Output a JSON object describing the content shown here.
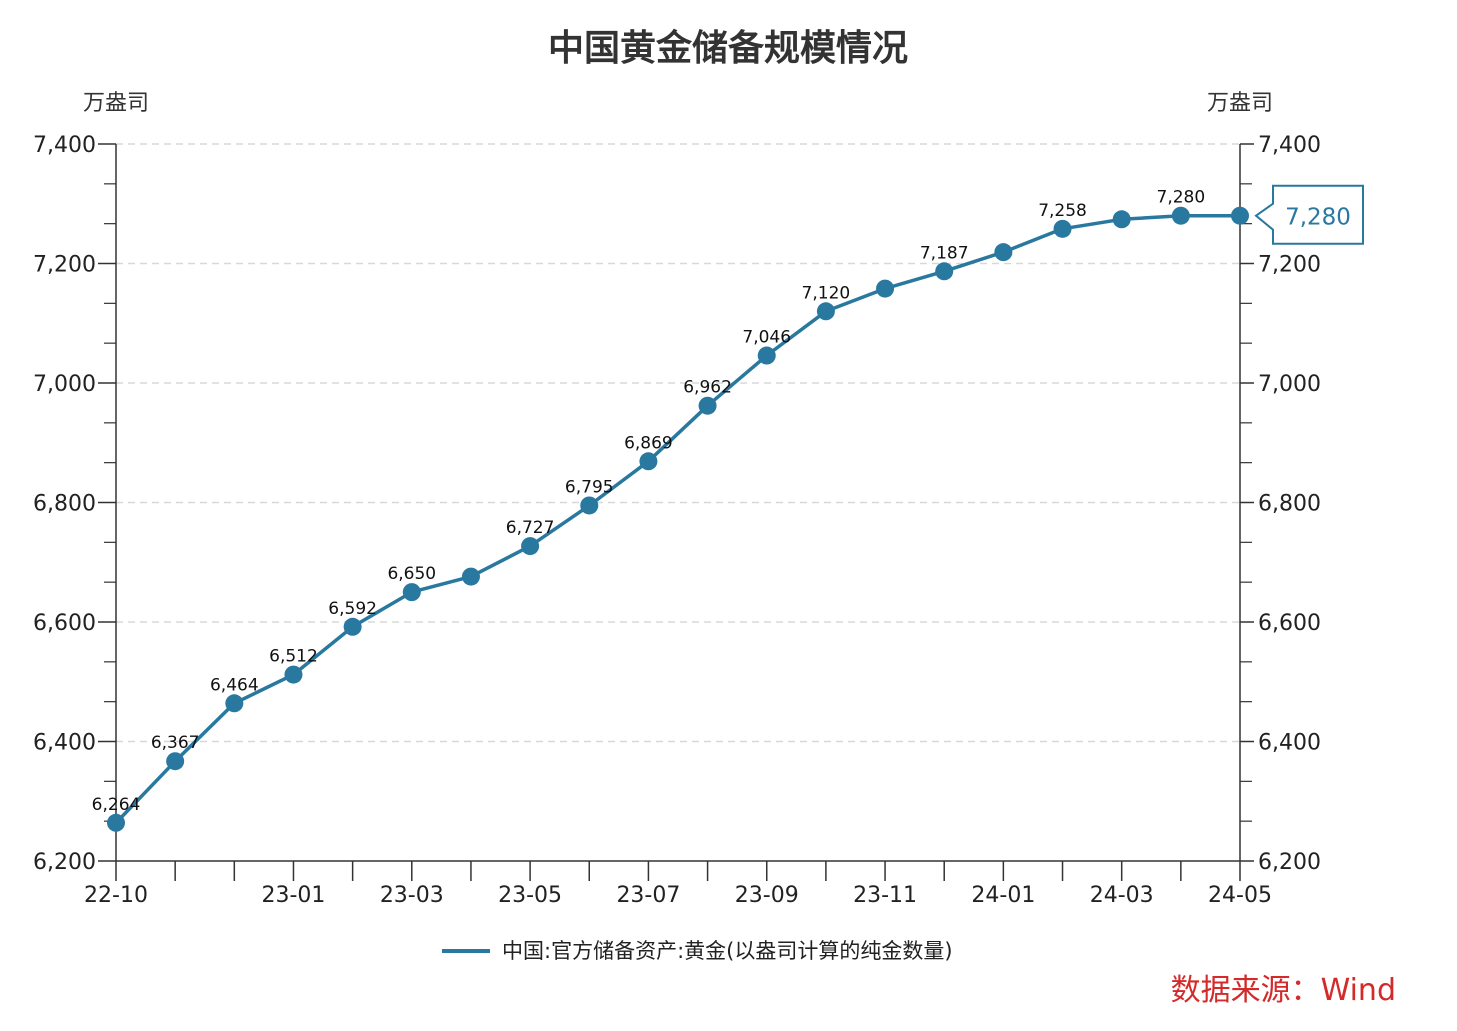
{
  "chart_data": {
    "type": "line",
    "title": "中国黄金储备规模情况",
    "left_unit": "万盎司",
    "right_unit": "万盎司",
    "x": [
      "22-10",
      "22-11",
      "22-12",
      "23-01",
      "23-02",
      "23-03",
      "23-04",
      "23-05",
      "23-06",
      "23-07",
      "23-08",
      "23-09",
      "23-10",
      "23-11",
      "23-12",
      "24-01",
      "24-02",
      "24-03",
      "24-04",
      "24-05"
    ],
    "x_tick_labels": [
      "22-10",
      "",
      "",
      "23-01",
      "",
      "23-03",
      "",
      "23-05",
      "",
      "23-07",
      "",
      "23-09",
      "",
      "23-11",
      "",
      "24-01",
      "",
      "24-03",
      "",
      "24-05"
    ],
    "series": [
      {
        "name": "中国:官方储备资产:黄金(以盎司计算的纯金数量)",
        "values": [
          6264,
          6367,
          6464,
          6512,
          6592,
          6650,
          6676,
          6727,
          6795,
          6869,
          6962,
          7046,
          7120,
          7158,
          7187,
          7219,
          7258,
          7274,
          7280,
          7280
        ],
        "data_labels": [
          "6,264",
          "6,367",
          "6,464",
          "6,512",
          "6,592",
          "6,650",
          "",
          "6,727",
          "6,795",
          "6,869",
          "6,962",
          "7,046",
          "7,120",
          "",
          "7,187",
          "",
          "7,258",
          "",
          "7,280",
          ""
        ]
      }
    ],
    "ylim": [
      6200,
      7400
    ],
    "y_ticks": [
      "6,200",
      "6,400",
      "6,600",
      "6,800",
      "7,000",
      "7,200",
      "7,400"
    ],
    "grid": true,
    "legend_position": "bottom",
    "last_value_callout": "7,280",
    "line_color": "#2878a0",
    "source": "数据来源：Wind"
  }
}
